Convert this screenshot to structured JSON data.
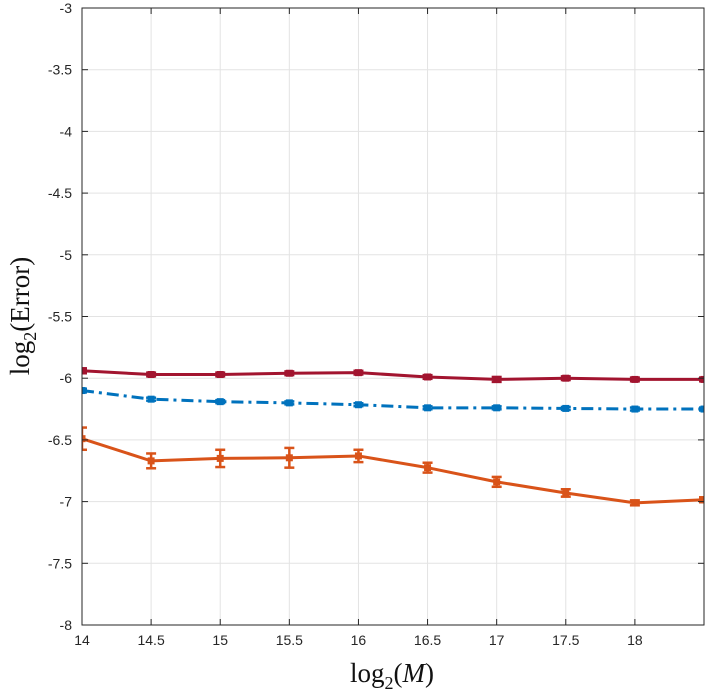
{
  "chart_data": {
    "type": "line",
    "title": "",
    "xlabel_parts": [
      "log",
      "2",
      "(",
      "M",
      ")"
    ],
    "ylabel_parts": [
      "log",
      "2",
      "(Error)"
    ],
    "xlim": [
      14,
      18.5
    ],
    "ylim": [
      -8,
      -3
    ],
    "grid": true,
    "x_ticks": [
      14,
      14.5,
      15,
      15.5,
      16,
      16.5,
      17,
      17.5,
      18
    ],
    "x_tick_labels": [
      "14",
      "14.5",
      "15",
      "15.5",
      "16",
      "16.5",
      "17",
      "17.5",
      "18"
    ],
    "y_ticks": [
      -3,
      -3.5,
      -4,
      -4.5,
      -5,
      -5.5,
      -6,
      -6.5,
      -7,
      -7.5,
      -8
    ],
    "y_tick_labels": [
      "-3",
      "-3.5",
      "-4",
      "-4.5",
      "-5",
      "-5.5",
      "-6",
      "-6.5",
      "-7",
      "-7.5",
      "-8"
    ],
    "x": [
      14,
      14.5,
      15,
      15.5,
      16,
      16.5,
      17,
      17.5,
      18,
      18.5
    ],
    "series": [
      {
        "name": "series-dark-red",
        "color": "#a2142f",
        "style": "solid",
        "marker": "square",
        "values": [
          -5.94,
          -5.97,
          -5.97,
          -5.96,
          -5.955,
          -5.99,
          -6.01,
          -6.0,
          -6.01,
          -6.01
        ],
        "errors": [
          0.02,
          0.015,
          0.015,
          0.015,
          0.015,
          0.015,
          0.02,
          0.015,
          0.015,
          0.015
        ]
      },
      {
        "name": "series-blue-dashdot",
        "color": "#0072bd",
        "style": "dashdot",
        "marker": "square",
        "values": [
          -6.1,
          -6.17,
          -6.19,
          -6.2,
          -6.215,
          -6.24,
          -6.24,
          -6.245,
          -6.25,
          -6.25
        ],
        "errors": [
          0.015,
          0.012,
          0.012,
          0.012,
          0.012,
          0.012,
          0.012,
          0.012,
          0.012,
          0.012
        ]
      },
      {
        "name": "series-orange-errorbars",
        "color": "#d95319",
        "style": "solid",
        "marker": "square",
        "values": [
          -6.49,
          -6.67,
          -6.65,
          -6.645,
          -6.63,
          -6.725,
          -6.84,
          -6.93,
          -7.01,
          -6.985
        ],
        "errors": [
          0.09,
          0.06,
          0.07,
          0.08,
          0.05,
          0.04,
          0.04,
          0.03,
          0.02,
          0.02
        ]
      }
    ]
  }
}
